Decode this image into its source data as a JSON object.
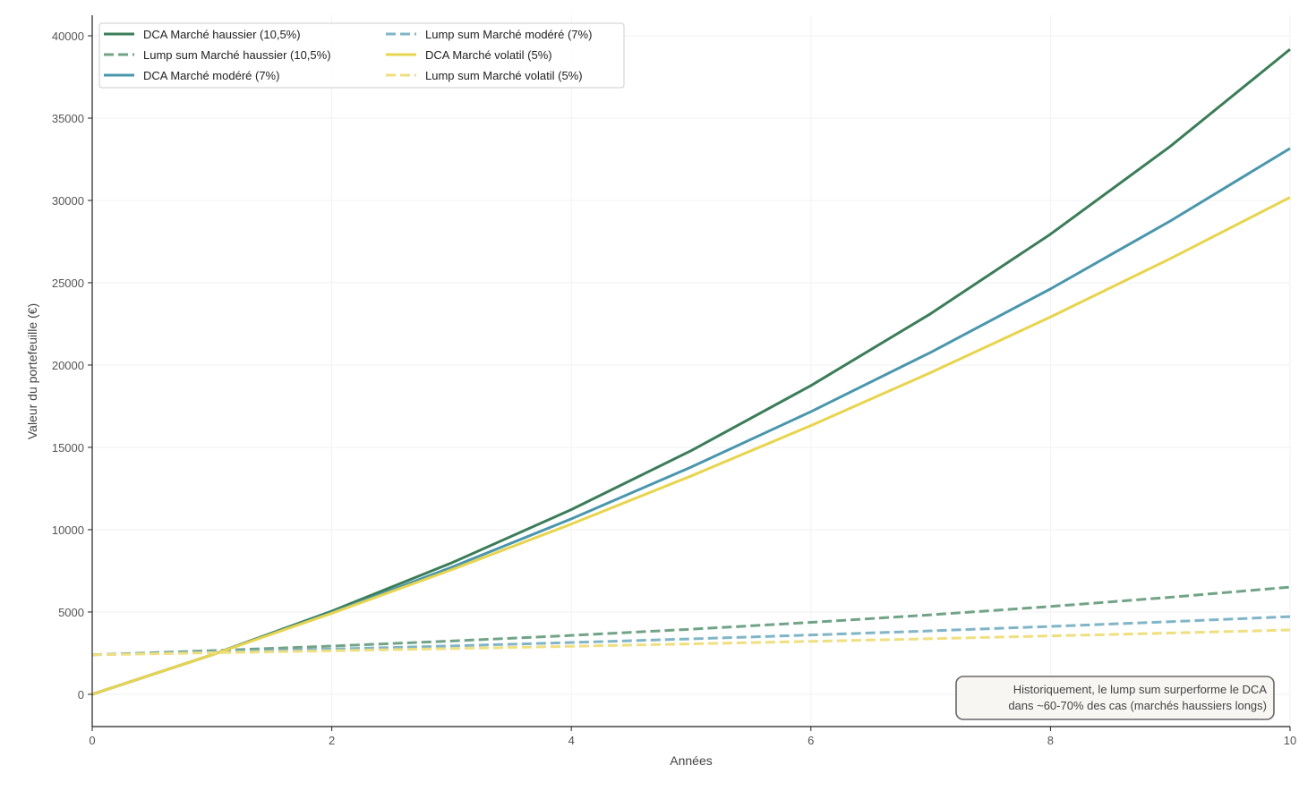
{
  "chart_data": {
    "type": "line",
    "title": "",
    "xlabel": "Années",
    "ylabel": "Valeur du portefeuille (€)",
    "xlim": [
      0,
      10
    ],
    "ylim": [
      -1960,
      41250
    ],
    "xticks": [
      0,
      2,
      4,
      6,
      8,
      10
    ],
    "yticks": [
      0,
      5000,
      10000,
      15000,
      20000,
      25000,
      30000,
      35000,
      40000
    ],
    "grid": true,
    "legend_position": "top-left",
    "x": [
      0,
      1,
      2,
      3,
      4,
      5,
      6,
      7,
      8,
      9,
      10
    ],
    "series": [
      {
        "name": "DCA Marché haussier (10,5%)",
        "color": "#3b7d58",
        "dash": false,
        "values": [
          0,
          2400,
          5052,
          7983,
          11221,
          14799,
          18753,
          23122,
          27950,
          33285,
          39179
        ]
      },
      {
        "name": "Lump sum Marché haussier (10,5%)",
        "color": "#71a387",
        "dash": true,
        "values": [
          2400,
          2652,
          2930,
          3238,
          3578,
          3954,
          4369,
          4828,
          5335,
          5895,
          6514
        ]
      },
      {
        "name": "DCA Marché modéré (7%)",
        "color": "#4a96ad",
        "dash": false,
        "values": [
          0,
          2400,
          4968,
          7716,
          10656,
          13802,
          17169,
          20771,
          24625,
          28749,
          33159
        ]
      },
      {
        "name": "Lump sum Marché modéré (7%)",
        "color": "#80b5c7",
        "dash": true,
        "values": [
          2400,
          2568,
          2748,
          2940,
          3146,
          3366,
          3602,
          3854,
          4124,
          4412,
          4721
        ]
      },
      {
        "name": "DCA Marché volatil (5%)",
        "color": "#e8d44d",
        "dash": false,
        "values": [
          0,
          2400,
          4920,
          7566,
          10344,
          13262,
          16325,
          19541,
          22918,
          26464,
          30187
        ]
      },
      {
        "name": "Lump sum Marché volatil (5%)",
        "color": "#efdf7f",
        "dash": true,
        "values": [
          2400,
          2520,
          2646,
          2778,
          2917,
          3063,
          3216,
          3377,
          3546,
          3723,
          3909
        ]
      }
    ],
    "annotation": {
      "lines": [
        "Historiquement, le lump sum surperforme le DCA",
        "dans ~60-70% des cas (marchés haussiers longs)"
      ],
      "position": "bottom-right"
    }
  }
}
